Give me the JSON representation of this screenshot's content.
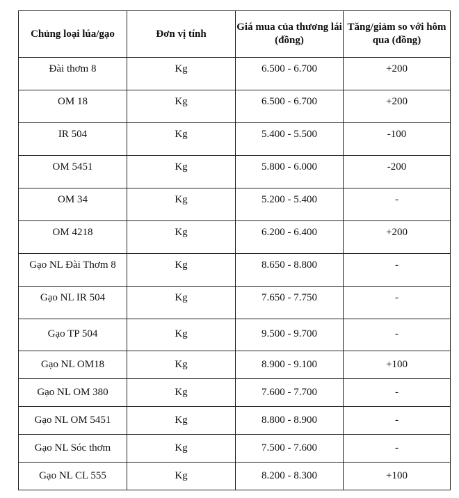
{
  "table": {
    "headers": [
      "Chủng loại lúa/gạo",
      "Đơn vị tính",
      "Giá mua của thương lái (đồng)",
      "Tăng/giảm so với hôm qua (đồng)"
    ],
    "rows": [
      [
        "Đài thơm 8",
        "Kg",
        "6.500 - 6.700",
        "+200"
      ],
      [
        "OM 18",
        "Kg",
        "6.500 - 6.700",
        "+200"
      ],
      [
        "IR 504",
        "Kg",
        "5.400 - 5.500",
        "-100"
      ],
      [
        "OM 5451",
        "Kg",
        "5.800 - 6.000",
        "-200"
      ],
      [
        "OM 34",
        "Kg",
        "5.200 - 5.400",
        "-"
      ],
      [
        "OM 4218",
        "Kg",
        "6.200 - 6.400",
        "+200"
      ],
      [
        "Gạo NL Đài Thơm 8",
        "Kg",
        "8.650 - 8.800",
        "-"
      ],
      [
        "Gạo NL IR 504",
        "Kg",
        "7.650 - 7.750",
        "-"
      ],
      [
        "Gạo TP 504",
        "Kg",
        "9.500 - 9.700",
        "-"
      ],
      [
        "Gạo NL OM18",
        "Kg",
        "8.900 - 9.100",
        "+100"
      ],
      [
        "Gạo NL OM 380",
        "Kg",
        "7.600 - 7.700",
        "-"
      ],
      [
        "Gạo NL OM 5451",
        "Kg",
        "8.800 - 8.900",
        "-"
      ],
      [
        "Gạo NL Sóc thơm",
        "Kg",
        "7.500 - 7.600",
        "-"
      ],
      [
        "Gạo NL CL 555",
        "Kg",
        "8.200 - 8.300",
        "+100"
      ]
    ]
  }
}
